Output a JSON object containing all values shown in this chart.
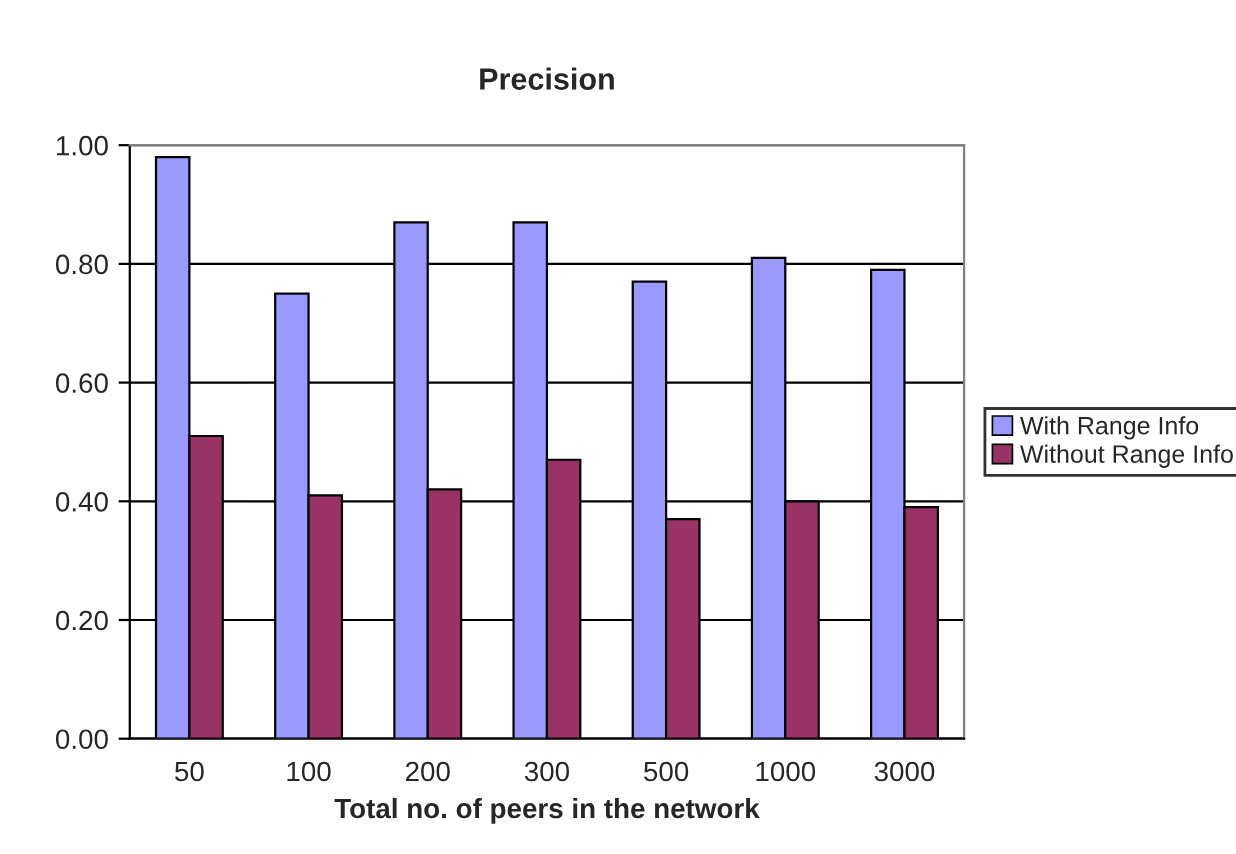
{
  "chart_data": {
    "type": "bar",
    "title": "Precision",
    "xlabel": "Total no. of peers in the network",
    "categories": [
      "50",
      "100",
      "200",
      "300",
      "500",
      "1000",
      "3000"
    ],
    "series": [
      {
        "name": "With Range Info",
        "color": "#9999ff",
        "values": [
          0.98,
          0.75,
          0.87,
          0.87,
          0.77,
          0.81,
          0.79
        ]
      },
      {
        "name": "Without Range Info",
        "color": "#993366",
        "values": [
          0.51,
          0.41,
          0.42,
          0.47,
          0.37,
          0.4,
          0.39
        ]
      }
    ],
    "ylim": [
      0,
      1
    ],
    "yticks": [
      {
        "value": 0,
        "label": "0.00"
      },
      {
        "value": 0.2,
        "label": "0.20"
      },
      {
        "value": 0.4,
        "label": "0.40"
      },
      {
        "value": 0.6,
        "label": "0.60"
      },
      {
        "value": 0.8,
        "label": "0.80"
      },
      {
        "value": 1,
        "label": "1.00"
      }
    ],
    "grid": "y",
    "legend": "right"
  }
}
